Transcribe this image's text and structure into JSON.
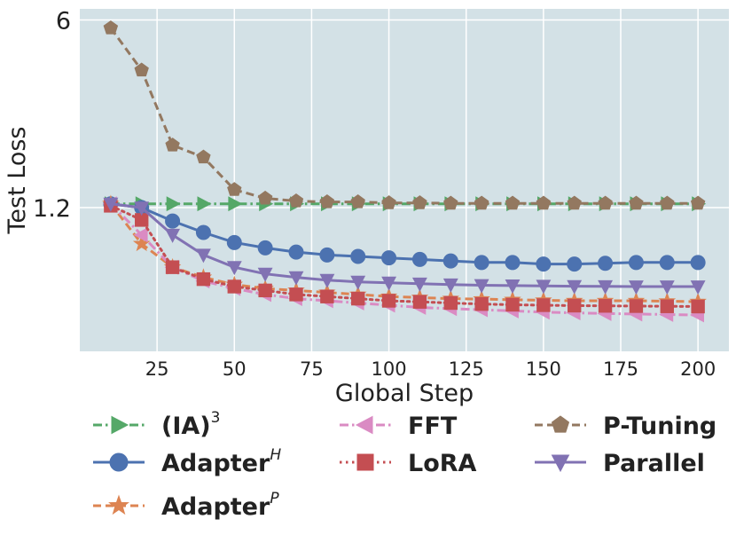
{
  "chart_data": {
    "type": "line",
    "title": "",
    "xlabel": "Global Step",
    "ylabel": "Test Loss",
    "xlim": [
      0,
      210
    ],
    "ylim": [
      0.35,
      6.6
    ],
    "yscale": "log",
    "xticks": [
      25,
      50,
      75,
      100,
      125,
      150,
      175,
      200
    ],
    "yticks": [
      1.2,
      6
    ],
    "ytick_labels": [
      "1.2",
      "6"
    ],
    "grid": true,
    "legend_location": "below",
    "x": [
      10,
      20,
      30,
      40,
      50,
      60,
      70,
      80,
      90,
      100,
      110,
      120,
      130,
      140,
      150,
      160,
      170,
      180,
      190,
      200
    ],
    "series": [
      {
        "name": "(IA)",
        "name_superscript": "3",
        "color": "#55a868",
        "linestyle": "dashdot",
        "marker": "triangle-right",
        "values": [
          1.24,
          1.24,
          1.24,
          1.24,
          1.24,
          1.24,
          1.24,
          1.24,
          1.24,
          1.24,
          1.24,
          1.24,
          1.24,
          1.24,
          1.24,
          1.24,
          1.24,
          1.24,
          1.24,
          1.24
        ]
      },
      {
        "name": "Adapter",
        "name_superscript": "H",
        "color": "#4c72b0",
        "linestyle": "solid",
        "marker": "circle",
        "values": [
          1.24,
          1.2,
          1.07,
          0.97,
          0.89,
          0.85,
          0.82,
          0.8,
          0.79,
          0.78,
          0.77,
          0.76,
          0.75,
          0.75,
          0.74,
          0.74,
          0.745,
          0.75,
          0.75,
          0.75
        ]
      },
      {
        "name": "Adapter",
        "name_superscript": "P",
        "color": "#dd8452",
        "linestyle": "dashed",
        "marker": "star",
        "values": [
          1.24,
          0.88,
          0.72,
          0.66,
          0.62,
          0.6,
          0.59,
          0.58,
          0.57,
          0.56,
          0.555,
          0.55,
          0.548,
          0.545,
          0.542,
          0.54,
          0.54,
          0.54,
          0.538,
          0.536
        ]
      },
      {
        "name": "FFT",
        "name_superscript": "",
        "color": "#da8bc3",
        "linestyle": "dashdot",
        "marker": "triangle-left",
        "values": [
          1.24,
          0.95,
          0.72,
          0.64,
          0.6,
          0.57,
          0.55,
          0.54,
          0.53,
          0.52,
          0.51,
          0.505,
          0.5,
          0.495,
          0.49,
          0.487,
          0.484,
          0.482,
          0.48,
          0.478
        ]
      },
      {
        "name": "LoRA",
        "name_superscript": "",
        "color": "#c44e52",
        "linestyle": "dotted",
        "marker": "square",
        "values": [
          1.22,
          1.08,
          0.72,
          0.65,
          0.61,
          0.59,
          0.57,
          0.56,
          0.55,
          0.54,
          0.535,
          0.53,
          0.525,
          0.522,
          0.52,
          0.518,
          0.517,
          0.516,
          0.515,
          0.514
        ]
      },
      {
        "name": "P-Tuning",
        "name_superscript": "",
        "color": "#937860",
        "linestyle": "dashed",
        "marker": "pentagon",
        "values": [
          5.6,
          3.9,
          2.05,
          1.85,
          1.4,
          1.3,
          1.27,
          1.26,
          1.26,
          1.25,
          1.25,
          1.245,
          1.245,
          1.245,
          1.245,
          1.245,
          1.245,
          1.245,
          1.245,
          1.245
        ]
      },
      {
        "name": "Parallel",
        "name_superscript": "",
        "color": "#8172b3",
        "linestyle": "solid",
        "marker": "triangle-down",
        "values": [
          1.24,
          1.2,
          0.95,
          0.8,
          0.72,
          0.68,
          0.66,
          0.645,
          0.635,
          0.63,
          0.625,
          0.62,
          0.617,
          0.615,
          0.613,
          0.612,
          0.611,
          0.61,
          0.61,
          0.61
        ]
      }
    ]
  }
}
